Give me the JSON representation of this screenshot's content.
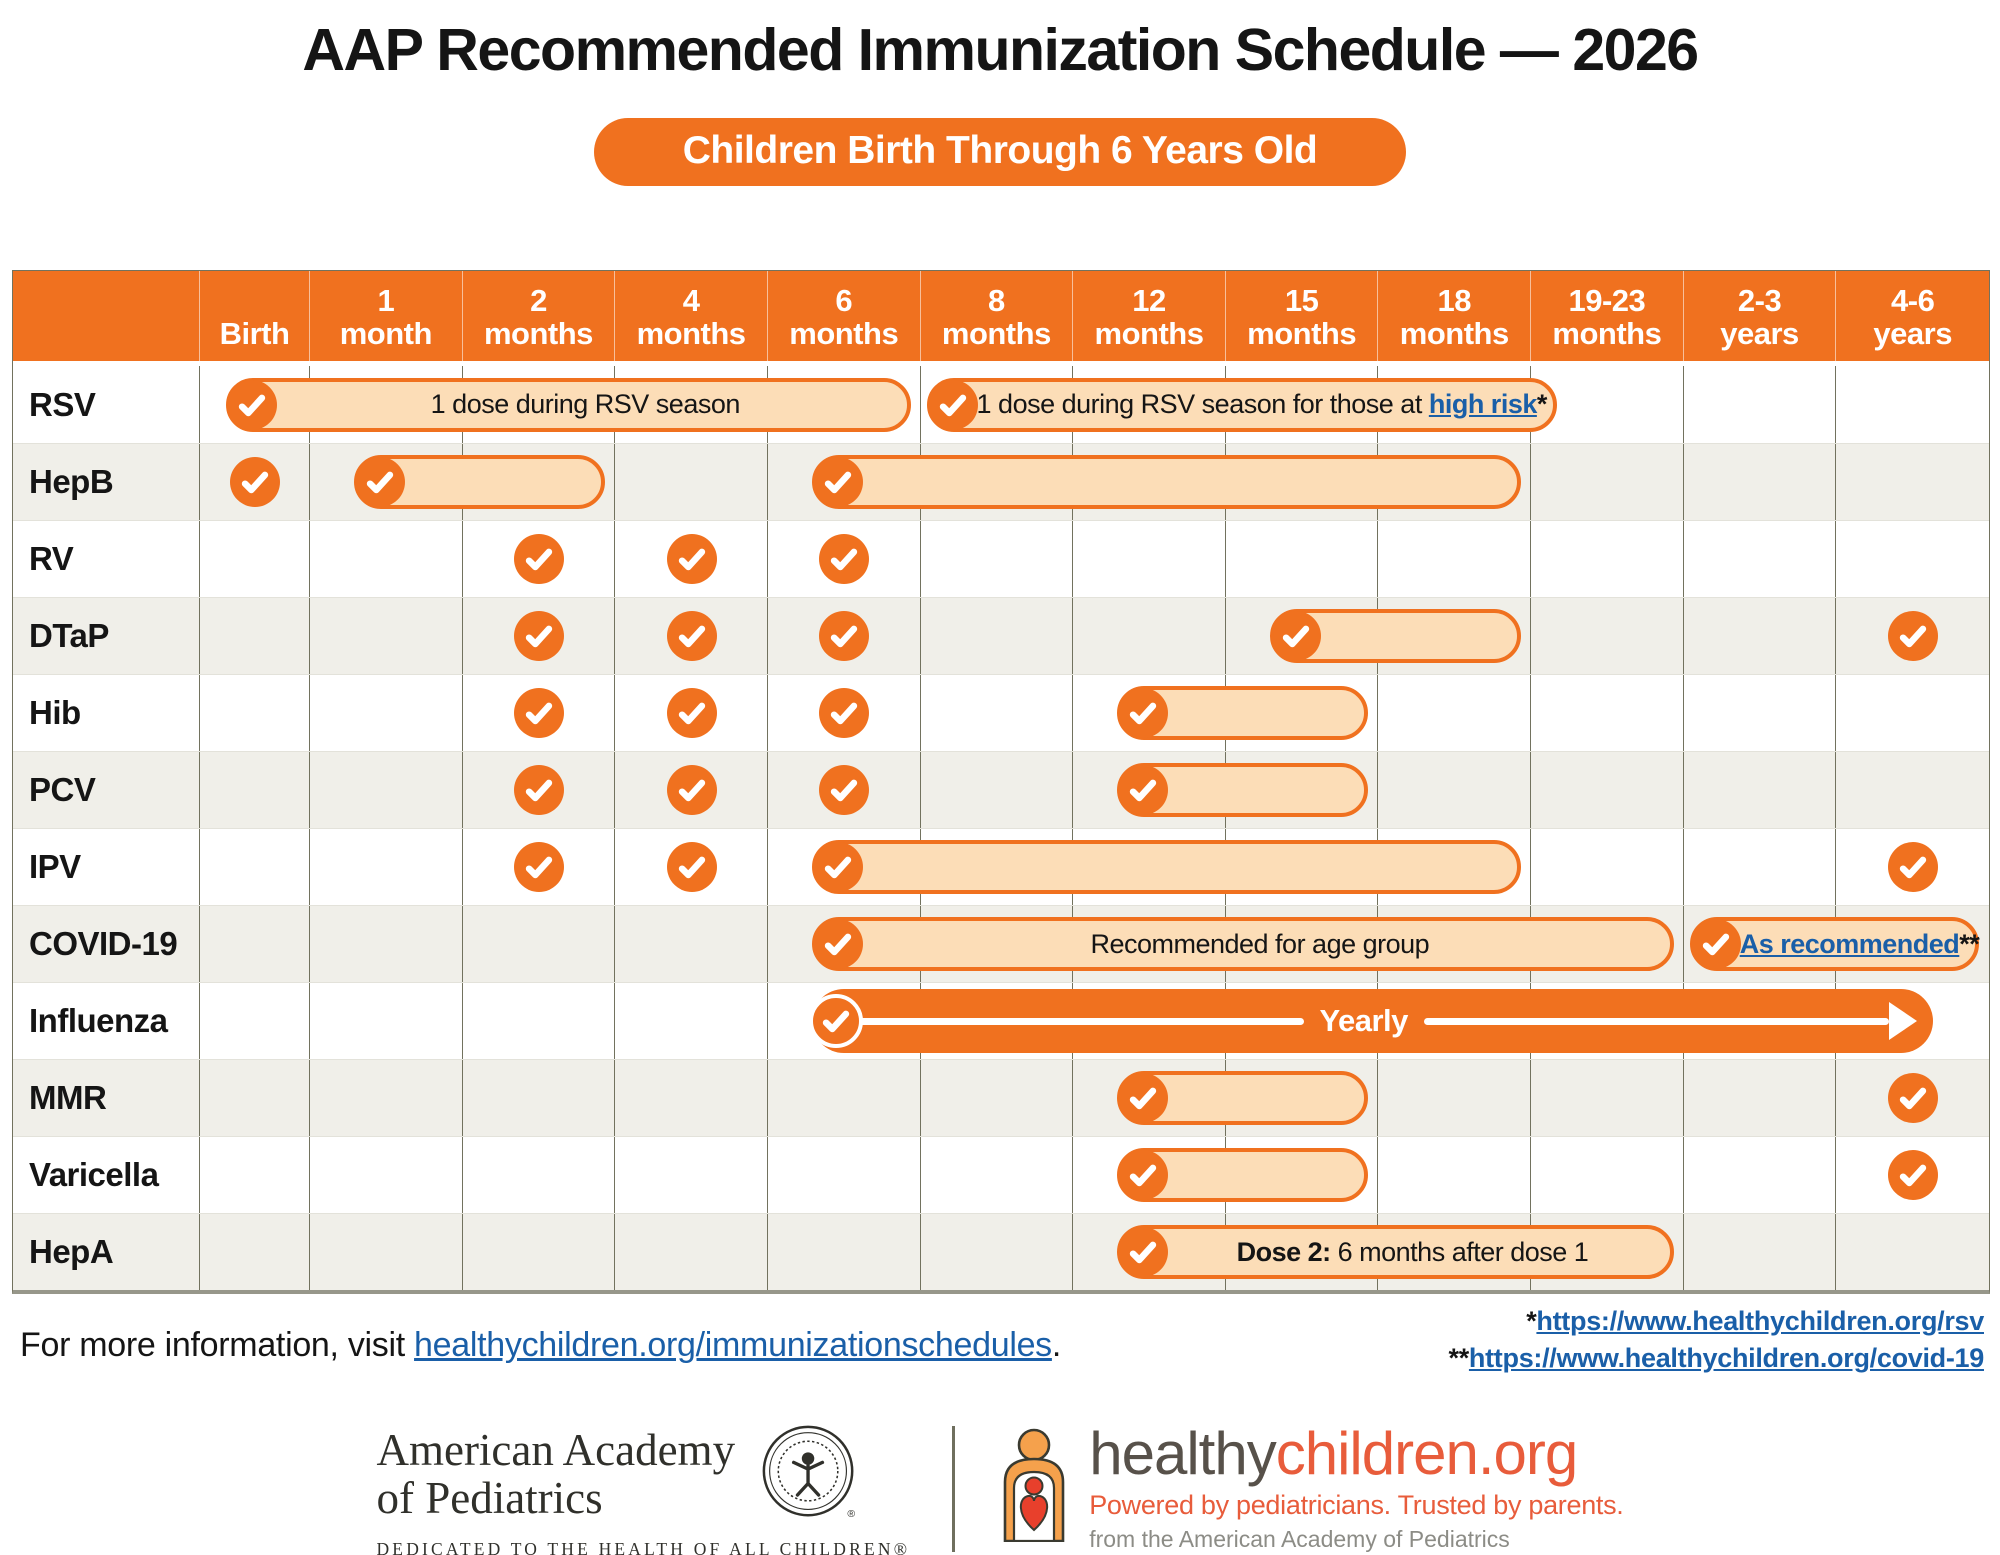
{
  "title": "AAP Recommended Immunization Schedule — 2026",
  "subtitle": "Children Birth Through 6 Years Old",
  "colors": {
    "orange": "#F0711F",
    "bar_fill": "#FCDDB7",
    "link_blue": "#1A5FA8",
    "row_shade": "#F0EFE9",
    "grid_line": "#72725E",
    "logo_red_orange": "#E85C3B",
    "logo_olive": "#57514A"
  },
  "chart_data": {
    "type": "table",
    "title": "AAP Recommended Immunization Schedule — 2026",
    "subtitle": "Children Birth Through 6 Years Old",
    "columns": [
      [
        "Birth"
      ],
      [
        "1",
        "month"
      ],
      [
        "2",
        "months"
      ],
      [
        "4",
        "months"
      ],
      [
        "6",
        "months"
      ],
      [
        "8",
        "months"
      ],
      [
        "12",
        "months"
      ],
      [
        "15",
        "months"
      ],
      [
        "18",
        "months"
      ],
      [
        "19-23",
        "months"
      ],
      [
        "2-3",
        "years"
      ],
      [
        "4-6",
        "years"
      ]
    ],
    "rows": [
      {
        "vaccine": "RSV",
        "checks": [],
        "bars": [
          {
            "start": 1,
            "end": 5,
            "check": true,
            "segments": [
              {
                "text": "1 dose during RSV season"
              }
            ]
          },
          {
            "start": 6,
            "end": 9,
            "check": true,
            "tight": true,
            "extend": true,
            "segments": [
              {
                "text": "1 dose during RSV season for those at "
              },
              {
                "text": "high risk",
                "link": true
              },
              {
                "text": "*",
                "stars": true
              }
            ]
          }
        ]
      },
      {
        "vaccine": "HepB",
        "checks": [
          1
        ],
        "bars": [
          {
            "start": 2,
            "end": 3,
            "check": true
          },
          {
            "start": 5,
            "end": 9,
            "check": true
          }
        ]
      },
      {
        "vaccine": "RV",
        "checks": [
          3,
          4,
          5
        ],
        "bars": []
      },
      {
        "vaccine": "DTaP",
        "checks": [
          3,
          4,
          5,
          12
        ],
        "bars": [
          {
            "start": 8,
            "end": 9,
            "check": true
          }
        ]
      },
      {
        "vaccine": "Hib",
        "checks": [
          3,
          4,
          5
        ],
        "bars": [
          {
            "start": 7,
            "end": 8,
            "check": true
          }
        ]
      },
      {
        "vaccine": "PCV",
        "checks": [
          3,
          4,
          5
        ],
        "bars": [
          {
            "start": 7,
            "end": 8,
            "check": true
          }
        ]
      },
      {
        "vaccine": "IPV",
        "checks": [
          3,
          4,
          12
        ],
        "bars": [
          {
            "start": 5,
            "end": 9,
            "check": true
          }
        ]
      },
      {
        "vaccine": "COVID-19",
        "checks": [],
        "bars": [
          {
            "start": 5,
            "end": 10,
            "check": true,
            "segments": [
              {
                "text": "Recommended for age group"
              }
            ]
          },
          {
            "start": 11,
            "end": 12,
            "check": true,
            "tight": true,
            "segments": [
              {
                "text": "As recommended",
                "link": true
              },
              {
                "text": "**",
                "stars": true
              }
            ]
          }
        ]
      },
      {
        "vaccine": "Influenza",
        "checks": [],
        "bars": [
          {
            "start": 5,
            "end": 12,
            "check": true,
            "solid": true,
            "arrow": true,
            "segments": [
              {
                "text": "Yearly"
              }
            ]
          }
        ]
      },
      {
        "vaccine": "MMR",
        "checks": [
          12
        ],
        "bars": [
          {
            "start": 7,
            "end": 8,
            "check": true
          }
        ]
      },
      {
        "vaccine": "Varicella",
        "checks": [
          12
        ],
        "bars": [
          {
            "start": 7,
            "end": 8,
            "check": true
          }
        ]
      },
      {
        "vaccine": "HepA",
        "checks": [],
        "bars": [
          {
            "start": 7,
            "end": 10,
            "check": true,
            "segments": [
              {
                "text": "Dose 2:",
                "bold": true
              },
              {
                "text": " 6 months after dose 1"
              }
            ]
          }
        ]
      }
    ]
  },
  "footer": {
    "info_prefix": "For more information, visit ",
    "info_link": "healthychildren.org/immunizationschedules",
    "info_suffix": ".",
    "footnote1_star": "*",
    "footnote1_link": "https://www.healthychildren.org/rsv",
    "footnote2_star": "**",
    "footnote2_link": "https://www.healthychildren.org/covid-19"
  },
  "logos": {
    "aap_name_line1": "American Academy",
    "aap_name_line2": "of Pediatrics",
    "aap_tagline": "DEDICATED TO THE HEALTH OF ALL CHILDREN®",
    "hc_name_1": "healthy",
    "hc_name_2": "children.org",
    "hc_tagline": "Powered by pediatricians. Trusted by parents.",
    "hc_subline": "from the American Academy of Pediatrics"
  }
}
